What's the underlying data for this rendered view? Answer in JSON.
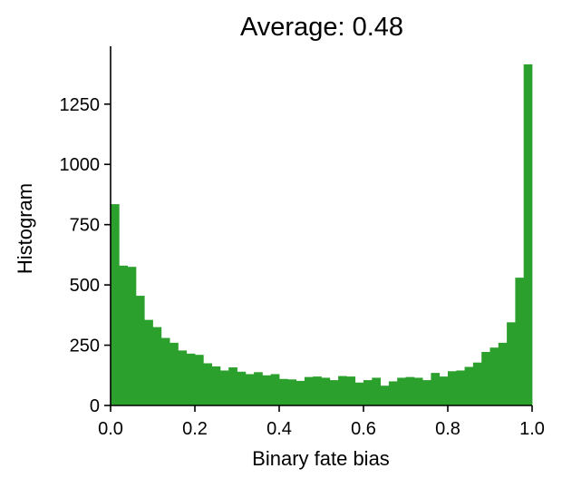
{
  "chart_data": {
    "type": "bar",
    "title": "Average: 0.48",
    "xlabel": "Binary fate bias",
    "ylabel": "Histogram",
    "xlim": [
      0,
      1
    ],
    "ylim": [
      0,
      1490
    ],
    "xticks": [
      0.0,
      0.2,
      0.4,
      0.6,
      0.8,
      1.0
    ],
    "xtick_labels": [
      "0.0",
      "0.2",
      "0.4",
      "0.6",
      "0.8",
      "1.0"
    ],
    "yticks": [
      0,
      250,
      500,
      750,
      1000,
      1250
    ],
    "ytick_labels": [
      "0",
      "250",
      "500",
      "750",
      "1000",
      "1250"
    ],
    "bin_width": 0.02,
    "bar_color": "#2ca02c",
    "grid": false,
    "values": [
      835,
      580,
      575,
      455,
      355,
      325,
      280,
      260,
      228,
      215,
      210,
      175,
      162,
      145,
      158,
      140,
      130,
      138,
      125,
      130,
      110,
      108,
      102,
      118,
      120,
      115,
      105,
      122,
      120,
      95,
      105,
      115,
      82,
      100,
      115,
      118,
      115,
      105,
      135,
      120,
      142,
      145,
      160,
      178,
      222,
      240,
      260,
      345,
      530,
      1415
    ]
  }
}
